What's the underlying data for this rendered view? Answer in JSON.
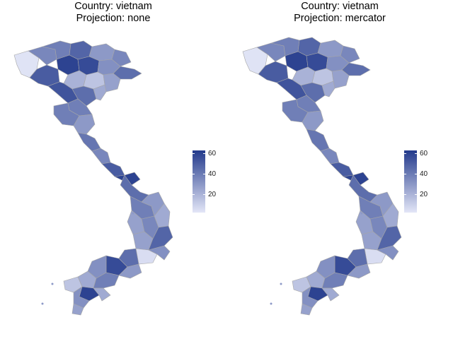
{
  "panels": [
    {
      "country_line": "Country: vietnam",
      "projection_line": "Projection: none"
    },
    {
      "country_line": "Country: vietnam",
      "projection_line": "Projection: mercator"
    }
  ],
  "legend": {
    "ticks": [
      "20",
      "40",
      "60"
    ],
    "colors": {
      "low": "#e3e6f7",
      "high": "#233a8c"
    },
    "range": [
      5,
      63
    ]
  },
  "map_data": {
    "type": "choropleth",
    "country": "vietnam",
    "fill_scale": "continuous light-to-dark blue",
    "border_color": "#a6a6a6"
  }
}
